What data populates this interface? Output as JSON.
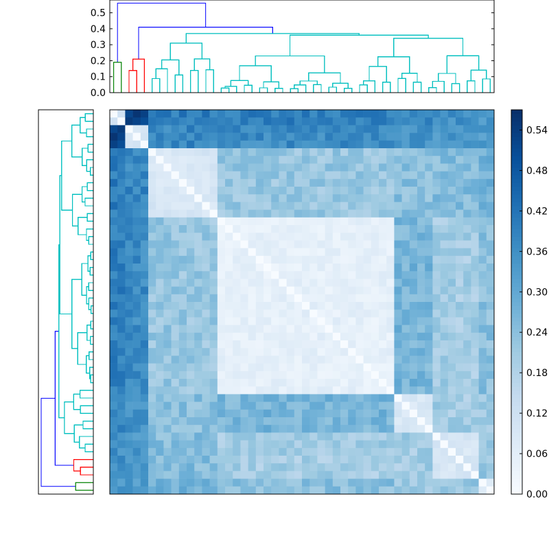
{
  "chart_data": [
    {
      "type": "dendrogram",
      "panel": "top",
      "title": "",
      "ylim": [
        0,
        0.58
      ],
      "yticks": [
        "0.0",
        "0.1",
        "0.2",
        "0.3",
        "0.4",
        "0.5"
      ],
      "colors": {
        "green": "#008000",
        "red": "#ff0000",
        "cyan": "#00bfbf",
        "blue": "#0000ff"
      },
      "root_height": 0.56,
      "second_height": 0.41
    },
    {
      "type": "dendrogram",
      "panel": "left",
      "orientation": "right",
      "root_height": 0.56
    },
    {
      "type": "heatmap",
      "title": "",
      "n_items": 50,
      "colorscale": "Blues",
      "vmin": 0.0,
      "vmax": 0.57,
      "colorbar_ticks": [
        "0.00",
        "0.06",
        "0.12",
        "0.18",
        "0.24",
        "0.30",
        "0.36",
        "0.42",
        "0.48",
        "0.54"
      ],
      "clusters": [
        {
          "name": "",
          "start": 0,
          "end": 1
        },
        {
          "name": "",
          "start": 2,
          "end": 4
        },
        {
          "name": "",
          "start": 5,
          "end": 13
        },
        {
          "name": "",
          "start": 14,
          "end": 36
        },
        {
          "name": "",
          "start": 37,
          "end": 41
        },
        {
          "name": "",
          "start": 42,
          "end": 47
        },
        {
          "name": "",
          "start": 48,
          "end": 49
        }
      ]
    }
  ]
}
